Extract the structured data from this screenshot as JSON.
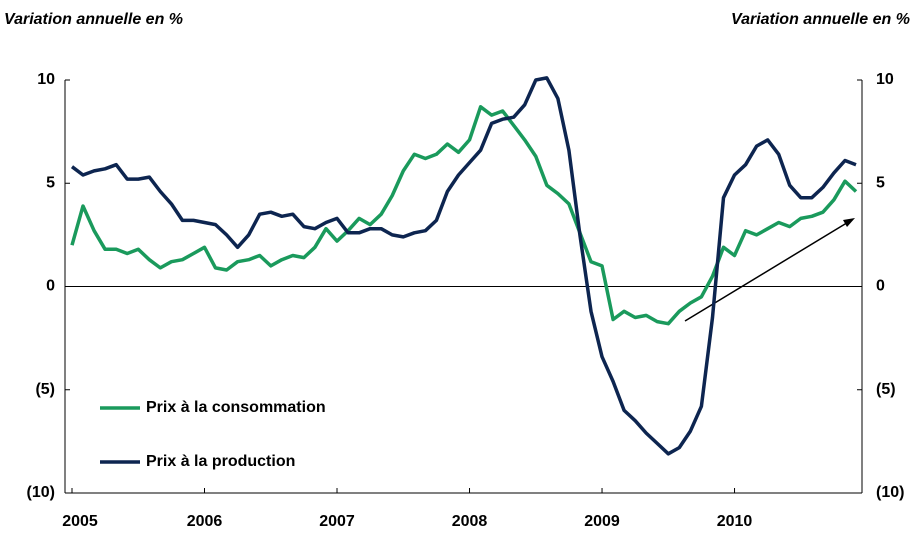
{
  "chart_data": {
    "type": "line",
    "y_label": "Variation annuelle en %",
    "y2_label": "Variation annuelle en %",
    "categories": [
      "2005",
      null,
      null,
      null,
      null,
      null,
      null,
      null,
      null,
      null,
      null,
      null,
      "2006",
      null,
      null,
      null,
      null,
      null,
      null,
      null,
      null,
      null,
      null,
      null,
      "2007",
      null,
      null,
      null,
      null,
      null,
      null,
      null,
      null,
      null,
      null,
      null,
      "2008",
      null,
      null,
      null,
      null,
      null,
      null,
      null,
      null,
      null,
      null,
      null,
      "2009",
      null,
      null,
      null,
      null,
      null,
      null,
      null,
      null,
      null,
      null,
      null,
      "2010",
      null,
      null,
      null,
      null,
      null,
      null,
      null,
      null,
      null,
      null,
      null
    ],
    "series": [
      {
        "name": "Prix à la consommation",
        "color": "#1a9a5c",
        "values": [
          2.0,
          3.9,
          2.7,
          1.8,
          1.8,
          1.6,
          1.8,
          1.3,
          0.9,
          1.2,
          1.3,
          1.6,
          1.9,
          0.9,
          0.8,
          1.2,
          1.3,
          1.5,
          1.0,
          1.3,
          1.5,
          1.4,
          1.9,
          2.8,
          2.2,
          2.7,
          3.3,
          3.0,
          3.5,
          4.4,
          5.6,
          6.4,
          6.2,
          6.4,
          6.9,
          6.5,
          7.1,
          8.7,
          8.3,
          8.5,
          7.8,
          7.1,
          6.3,
          4.9,
          4.5,
          4.0,
          2.6,
          1.2,
          1.0,
          -1.6,
          -1.2,
          -1.5,
          -1.4,
          -1.7,
          -1.8,
          -1.2,
          -0.8,
          -0.5,
          0.5,
          1.9,
          1.5,
          2.7,
          2.5,
          2.8,
          3.1,
          2.9,
          3.3,
          3.4,
          3.6,
          4.2,
          5.1,
          4.6
        ]
      },
      {
        "name": "Prix à la production",
        "color": "#0d2550",
        "values": [
          5.8,
          5.4,
          5.6,
          5.7,
          5.9,
          5.2,
          5.2,
          5.3,
          4.6,
          4.0,
          3.2,
          3.2,
          3.1,
          3.0,
          2.5,
          1.9,
          2.5,
          3.5,
          3.6,
          3.4,
          3.5,
          2.9,
          2.8,
          3.1,
          3.3,
          2.6,
          2.6,
          2.8,
          2.8,
          2.5,
          2.4,
          2.6,
          2.7,
          3.2,
          4.6,
          5.4,
          6.0,
          6.6,
          7.9,
          8.1,
          8.2,
          8.8,
          10.0,
          10.1,
          9.1,
          6.6,
          2.5,
          -1.2,
          -3.4,
          -4.6,
          -6.0,
          -6.5,
          -7.1,
          -7.6,
          -8.1,
          -7.8,
          -7.0,
          -5.8,
          -1.5,
          4.3,
          5.4,
          5.9,
          6.8,
          7.1,
          6.4,
          4.9,
          4.3,
          4.3,
          4.8,
          5.5,
          6.1,
          5.9
        ]
      }
    ],
    "ylim": [
      -10,
      10
    ],
    "yticks": [
      {
        "value": -10,
        "label": "(10)"
      },
      {
        "value": -5,
        "label": "(5)"
      },
      0,
      5,
      10
    ],
    "y2lim": [
      -10,
      10
    ],
    "y2ticks": [
      {
        "value": -10,
        "label": "(10)"
      },
      {
        "value": -5,
        "label": "(5)"
      },
      0,
      5,
      10
    ],
    "legend": "lower left"
  }
}
